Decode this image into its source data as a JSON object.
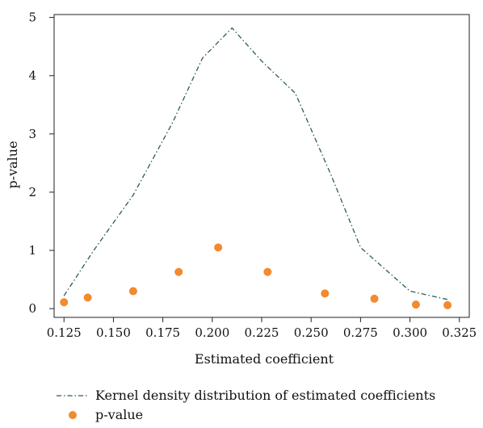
{
  "colors": {
    "density_line": "#2e5c54",
    "points": "#f28a2e",
    "axis": "#222222"
  },
  "chart_data": {
    "type": "line",
    "xlabel": "Estimated coefficient",
    "ylabel": "p-value",
    "xlim": [
      0.12,
      0.33
    ],
    "ylim": [
      -0.15,
      5.05
    ],
    "xticks": [
      "0.125",
      "0.150",
      "0.175",
      "0.200",
      "0.225",
      "0.250",
      "0.275",
      "0.300",
      "0.325"
    ],
    "yticks": [
      "0",
      "1",
      "2",
      "3",
      "4",
      "5"
    ],
    "grid": false,
    "legend_position": "bottom-left",
    "series": [
      {
        "name": "Kernel density distribution of estimated coefficients",
        "type": "line",
        "style": "dash-dot",
        "x": [
          0.125,
          0.14,
          0.16,
          0.18,
          0.195,
          0.21,
          0.225,
          0.242,
          0.26,
          0.275,
          0.3,
          0.32
        ],
        "y": [
          0.22,
          1.0,
          1.95,
          3.2,
          4.3,
          4.82,
          4.25,
          3.7,
          2.3,
          1.05,
          0.3,
          0.15
        ]
      },
      {
        "name": "p-value",
        "type": "scatter",
        "x": [
          0.125,
          0.137,
          0.16,
          0.183,
          0.203,
          0.228,
          0.257,
          0.282,
          0.303,
          0.319
        ],
        "y": [
          0.11,
          0.19,
          0.3,
          0.63,
          1.05,
          0.63,
          0.26,
          0.17,
          0.07,
          0.06
        ]
      }
    ]
  }
}
